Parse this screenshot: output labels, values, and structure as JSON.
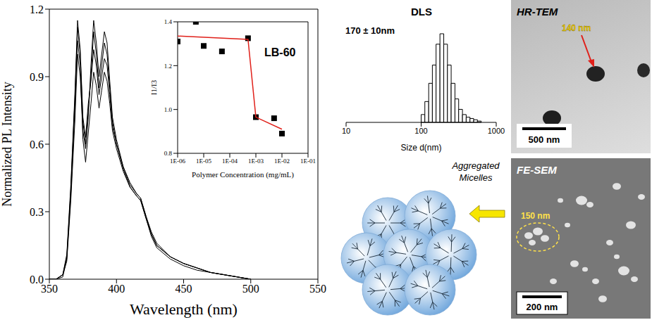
{
  "chart_data": [
    {
      "type": "line",
      "x_label": "Wavelength (nm)",
      "y_label": "Normalized PL Intensity",
      "x": [
        350,
        355,
        360,
        363,
        366,
        369,
        371,
        373,
        375,
        377,
        379,
        381,
        383,
        385,
        387,
        389,
        391,
        393,
        395,
        397,
        400,
        405,
        410,
        415,
        418,
        422,
        426,
        430,
        440,
        450,
        460,
        470,
        480,
        490,
        500
      ],
      "series": [
        {
          "color": "#000000",
          "values": [
            0,
            0,
            0.02,
            0.1,
            0.4,
            0.8,
            1.12,
            1.0,
            0.7,
            0.6,
            0.75,
            0.9,
            1.1,
            1.0,
            0.85,
            0.95,
            1.05,
            1.0,
            0.85,
            0.7,
            0.6,
            0.5,
            0.42,
            0.38,
            0.36,
            0.28,
            0.2,
            0.15,
            0.1,
            0.07,
            0.05,
            0.03,
            0.02,
            0.01,
            0
          ]
        },
        {
          "color": "#000000",
          "values": [
            0,
            0,
            0.02,
            0.08,
            0.35,
            0.7,
            1.0,
            0.9,
            0.66,
            0.58,
            0.72,
            0.95,
            1.15,
            1.05,
            0.9,
            1.0,
            1.1,
            1.05,
            0.88,
            0.72,
            0.62,
            0.5,
            0.43,
            0.38,
            0.36,
            0.28,
            0.21,
            0.16,
            0.1,
            0.07,
            0.05,
            0.03,
            0.02,
            0.01,
            0
          ]
        },
        {
          "color": "#000000",
          "values": [
            0,
            0,
            0.01,
            0.09,
            0.38,
            0.75,
            1.06,
            0.95,
            0.62,
            0.52,
            0.65,
            0.78,
            0.92,
            0.86,
            0.76,
            0.84,
            0.92,
            0.88,
            0.78,
            0.66,
            0.58,
            0.48,
            0.41,
            0.37,
            0.35,
            0.27,
            0.19,
            0.14,
            0.09,
            0.06,
            0.04,
            0.03,
            0.02,
            0.01,
            0
          ]
        },
        {
          "color": "#000000",
          "values": [
            0,
            0,
            0.02,
            0.11,
            0.42,
            0.82,
            1.15,
            1.02,
            0.72,
            0.63,
            0.78,
            0.88,
            1.02,
            0.95,
            0.82,
            0.9,
            0.98,
            0.95,
            0.82,
            0.68,
            0.6,
            0.49,
            0.41,
            0.37,
            0.35,
            0.27,
            0.2,
            0.15,
            0.1,
            0.07,
            0.05,
            0.03,
            0.02,
            0.01,
            0
          ]
        }
      ],
      "xlim": [
        350,
        550
      ],
      "xticks": [
        350,
        400,
        450,
        500,
        550
      ],
      "ylim": [
        0,
        1.2
      ],
      "yticks": [
        {
          "value": 0,
          "label": "0.0"
        },
        0.3,
        0.6,
        0.9,
        1.2
      ]
    },
    {
      "type": "scatter",
      "title": "LB-60",
      "x_label": "Polymer Concentration (mg/mL)",
      "y_label": "I1/I3",
      "x": [
        1e-06,
        5e-06,
        1e-05,
        5e-05,
        0.0005,
        0.001,
        0.005,
        0.01
      ],
      "values": [
        1.31,
        1.4,
        1.29,
        1.265,
        1.325,
        0.965,
        0.96,
        0.89
      ],
      "color": "#000000",
      "marker": "square",
      "fit": {
        "x": [
          1e-06,
          0.0005,
          0.001,
          0.01
        ],
        "values": [
          1.335,
          1.32,
          0.965,
          0.91
        ],
        "color": "#e0201a"
      },
      "log": "x",
      "xlim": [
        1e-06,
        0.1
      ],
      "xticks": [
        {
          "value": 1e-06,
          "label": "1E-06"
        },
        {
          "value": 1e-05,
          "label": "1E-05"
        },
        {
          "value": 0.0001,
          "label": "1E-04"
        },
        {
          "value": 0.001,
          "label": "1E-03"
        },
        {
          "value": 0.01,
          "label": "1E-02"
        },
        {
          "value": 0.1,
          "label": "1E-01"
        }
      ],
      "ylim": [
        0.8,
        1.4
      ],
      "yticks": [
        0.8,
        {
          "value": 1,
          "label": "1.0"
        },
        1.2,
        1.4
      ]
    },
    {
      "type": "histogram",
      "title": "DLS",
      "annotation": "170 ± 10nm",
      "x_label": "Size d(nm)",
      "bins": [
        100,
        112,
        126,
        141,
        158,
        178,
        200,
        224,
        251,
        282,
        316,
        355,
        398,
        447,
        501,
        562,
        631
      ],
      "counts": [
        3,
        8,
        15,
        22,
        30,
        34,
        30,
        22,
        15,
        9,
        5,
        3,
        2,
        1.5,
        1,
        0.5
      ],
      "color": "#ffffff",
      "log": "x",
      "xlim": [
        10,
        1000
      ],
      "xticks": [
        10,
        100,
        1000
      ],
      "tick_labels": "x"
    }
  ],
  "images": {
    "hr_tem": {
      "title": "HR-TEM",
      "annotation": "140 nm",
      "scale_bar": "500 nm"
    },
    "fe_sem": {
      "title": "FE-SEM",
      "annotation": "150 nm",
      "scale_bar": "200 nm"
    }
  },
  "diagram": {
    "label": "Aggregated Micelles"
  }
}
